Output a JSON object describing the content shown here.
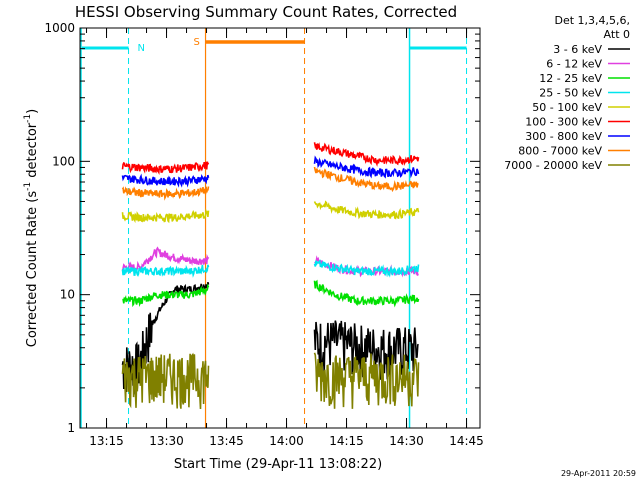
{
  "chart_data": {
    "type": "line",
    "title": "HESSI Observing Summary Count Rates, Corrected",
    "xlabel": "Start Time (29-Apr-11 13:08:22)",
    "ylabel": "Corrected Count Rate (s",
    "ylabel_sup1": "-1",
    "ylabel_mid": " detector",
    "ylabel_sup2": "-1",
    "ylabel_end": ")",
    "y_scale": "log",
    "ylim": [
      1,
      1000
    ],
    "y_ticks": [
      "1",
      "10",
      "100",
      "1000"
    ],
    "xlim": [
      "13:08:22",
      "14:48:22"
    ],
    "x_ticks": [
      "13:15",
      "13:30",
      "13:45",
      "14:00",
      "14:15",
      "14:30",
      "14:45"
    ],
    "x_tick_minutes": [
      15,
      30,
      45,
      60,
      75,
      90,
      105
    ],
    "legend_header": [
      "Det 1,3,4,5,6,",
      "Att 0"
    ],
    "footer_date": "29-Apr-2011 20:59",
    "markers": {
      "N_label": "N",
      "S_label": "S",
      "night_color": "#00e5ee",
      "saa_color": "#ff7f00",
      "night_start": "13:20:30",
      "night_end": "14:30:45",
      "night_end2": "14:45:00",
      "saa_start": "13:39:45",
      "saa_end": "14:04:30"
    },
    "gap": [
      "13:40:30",
      "14:07:00"
    ],
    "series": [
      {
        "name": "3 - 6 keV",
        "color": "#000000",
        "before_gap": [
          3,
          3,
          7,
          11,
          11,
          12
        ],
        "after_gap": [
          4.5,
          4.5,
          4.2,
          4.0,
          4.0,
          4.0
        ]
      },
      {
        "name": "6 - 12 keV",
        "color": "#e040e0",
        "before_gap": [
          16,
          16,
          21,
          19,
          18,
          18
        ],
        "after_gap": [
          18,
          16,
          15,
          15,
          15,
          15
        ]
      },
      {
        "name": "12 - 25 keV",
        "color": "#00e000",
        "before_gap": [
          9,
          9,
          10,
          10,
          10,
          11
        ],
        "after_gap": [
          12,
          10,
          9,
          9,
          9,
          9.5
        ]
      },
      {
        "name": "25 - 50 keV",
        "color": "#00e5ee",
        "before_gap": [
          15,
          15,
          15,
          15,
          15,
          16
        ],
        "after_gap": [
          17,
          16,
          15,
          15,
          15,
          16
        ]
      },
      {
        "name": "50 - 100 keV",
        "color": "#d0d000",
        "before_gap": [
          39,
          38,
          38,
          38,
          39,
          40
        ],
        "after_gap": [
          49,
          44,
          41,
          40,
          40,
          42
        ]
      },
      {
        "name": "100 - 300 keV",
        "color": "#ff0000",
        "before_gap": [
          92,
          90,
          88,
          88,
          90,
          94
        ],
        "after_gap": [
          130,
          120,
          110,
          102,
          102,
          106
        ]
      },
      {
        "name": "300 - 800 keV",
        "color": "#0000ff",
        "before_gap": [
          75,
          73,
          71,
          71,
          72,
          75
        ],
        "after_gap": [
          100,
          92,
          86,
          82,
          82,
          85
        ]
      },
      {
        "name": "800 - 7000 keV",
        "color": "#ff7f00",
        "before_gap": [
          60,
          58,
          57,
          57,
          58,
          61
        ],
        "after_gap": [
          85,
          77,
          70,
          65,
          65,
          67
        ]
      },
      {
        "name": "7000 - 20000 keV",
        "color": "#808000",
        "before_gap": [
          2.5,
          2.5,
          2.5,
          2.5,
          2.5,
          2.5
        ],
        "after_gap": [
          2.6,
          2.5,
          2.5,
          2.5,
          2.5,
          2.5
        ]
      }
    ]
  }
}
